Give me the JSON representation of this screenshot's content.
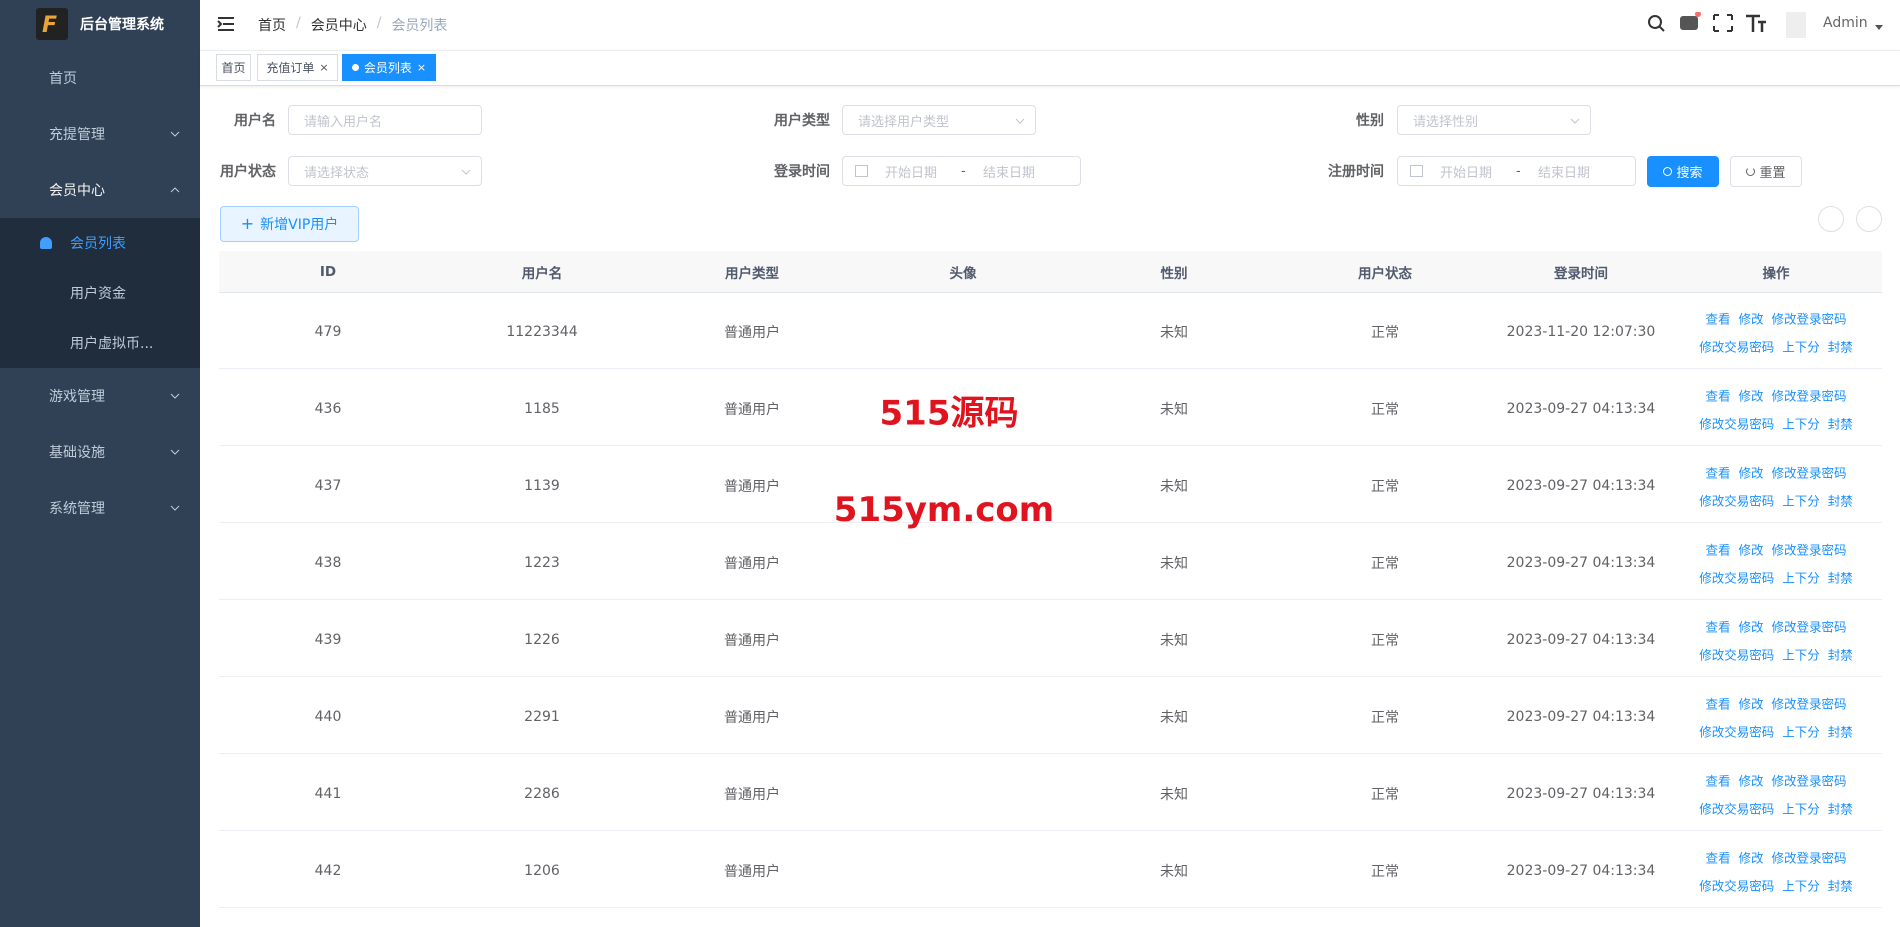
{
  "sidebar": {
    "title": "后台管理系统",
    "menu": [
      {
        "label": "首页"
      },
      {
        "label": "充提管理"
      },
      {
        "label": "会员中心",
        "children": [
          "会员列表",
          "用户资金",
          "用户虚拟币..."
        ]
      },
      {
        "label": "游戏管理"
      },
      {
        "label": "基础设施"
      },
      {
        "label": "系统管理"
      }
    ]
  },
  "header": {
    "breadcrumb": [
      "首页",
      "会员中心",
      "会员列表"
    ],
    "user": "Admin"
  },
  "tags": [
    "首页",
    "充值订单",
    "会员列表"
  ],
  "filters": [
    {
      "label": "用户名",
      "placeholder": "请输入用户名"
    },
    {
      "label": "用户类型",
      "placeholder": "请选择用户类型"
    },
    {
      "label": "性别",
      "placeholder": "请选择性别"
    },
    {
      "label": "用户状态",
      "placeholder": "请选择状态"
    },
    {
      "label": "登录时间",
      "start": "开始日期",
      "separator": "-",
      "end": "结束日期"
    },
    {
      "label": "注册时间",
      "start": "开始日期",
      "separator": "-",
      "end": "结束日期"
    }
  ],
  "buttons": {
    "search": "搜索",
    "reset": "重置",
    "add": "新增VIP用户"
  },
  "table": {
    "columns": [
      "ID",
      "用户名",
      "用户类型",
      "头像",
      "性别",
      "用户状态",
      "登录时间",
      "操作"
    ],
    "rows": [
      {
        "id": 479,
        "username": "11223344",
        "type": "普通用户",
        "gender": "未知",
        "status": "正常",
        "login_time": "2023-11-20 12:07:30"
      },
      {
        "id": 436,
        "username": "1185",
        "type": "普通用户",
        "gender": "未知",
        "status": "正常",
        "login_time": "2023-09-27 04:13:34"
      },
      {
        "id": 437,
        "username": "1139",
        "type": "普通用户",
        "gender": "未知",
        "status": "正常",
        "login_time": "2023-09-27 04:13:34"
      },
      {
        "id": 438,
        "username": "1223",
        "type": "普通用户",
        "gender": "未知",
        "status": "正常",
        "login_time": "2023-09-27 04:13:34"
      },
      {
        "id": 439,
        "username": "1226",
        "type": "普通用户",
        "gender": "未知",
        "status": "正常",
        "login_time": "2023-09-27 04:13:34"
      },
      {
        "id": 440,
        "username": "2291",
        "type": "普通用户",
        "gender": "未知",
        "status": "正常",
        "login_time": "2023-09-27 04:13:34"
      },
      {
        "id": 441,
        "username": "2286",
        "type": "普通用户",
        "gender": "未知",
        "status": "正常",
        "login_time": "2023-09-27 04:13:34"
      },
      {
        "id": 442,
        "username": "1206",
        "type": "普通用户",
        "gender": "未知",
        "status": "正常",
        "login_time": "2023-09-27 04:13:34"
      }
    ],
    "actions": [
      "查看",
      "修改",
      "修改登录密码",
      "修改交易密码",
      "上下分",
      "封禁"
    ]
  },
  "watermark": [
    "515源码",
    "515ym.com"
  ]
}
